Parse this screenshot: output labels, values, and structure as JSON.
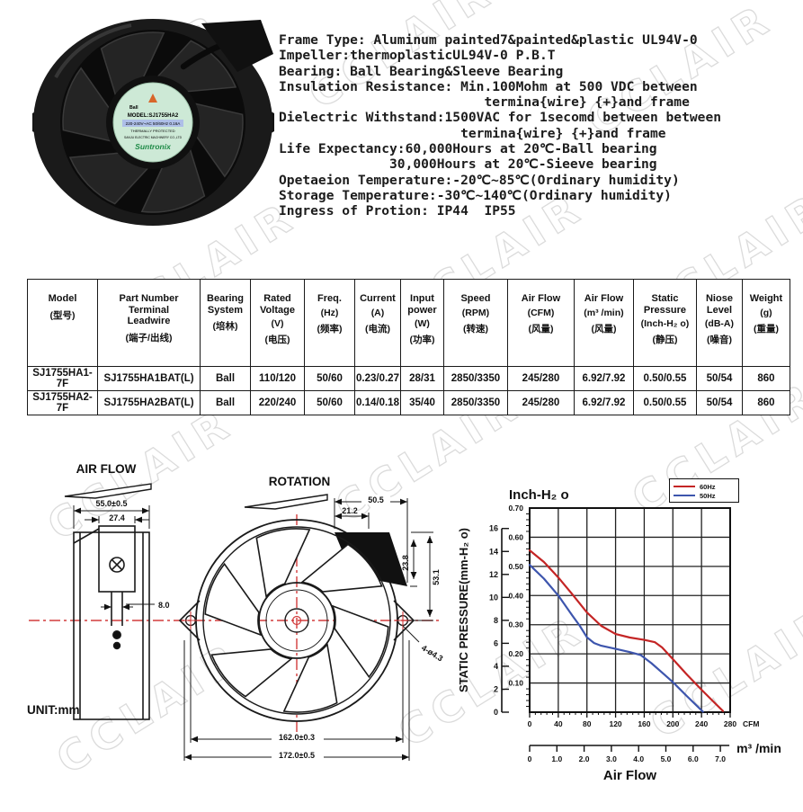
{
  "watermark": "CCLAIR",
  "product_photo": {
    "label": {
      "bearing": "Ball",
      "model": "MODEL:SJ1755HA2",
      "ratings": "220-240V~AC 50/60Hz 0.16A",
      "protected": "THERMALLY PROTECTED",
      "mfr": "SANJU ELECTRIC MACHINERY CO.,LTD",
      "brand": "Suntronix"
    }
  },
  "specs": {
    "lines": [
      "Frame Type: Aluminum painted7&painted&plastic UL94V-0",
      "Impeller:thermoplasticUL94V-0 P.B.T",
      "Bearing: Ball Bearing&Sleeve Bearing",
      "Insulation Resistance: Min.100Mohm at 500 VDC between",
      "                          termina{wire} {+}and frame",
      "Dielectric Withstand:1500VAC for 1secomd between between",
      "                       termina{wire} {+}and frame",
      "Life Expectancy:60,000Hours at 20℃-Ball bearing",
      "              30,000Hours at 20℃-Sieeve bearing",
      "Opetaeion Temperature:-20℃~85℃(Ordinary humidity)",
      "Storage Temperature:-30℃~140℃(Ordinary humidity)",
      "Ingress of Protion: IP44  IP55"
    ]
  },
  "table": {
    "columns": [
      {
        "en": "Model",
        "unit": "",
        "cn": "(型号)"
      },
      {
        "en": "Part Number\nTerminal\nLeadwire",
        "unit": "",
        "cn": "(端子/出线)"
      },
      {
        "en": "Bearing\nSystem",
        "unit": "",
        "cn": "(培林)"
      },
      {
        "en": "Rated\nVoltage",
        "unit": "(V)",
        "cn": "(电压)"
      },
      {
        "en": "Freq.",
        "unit": "(Hz)",
        "cn": "(频率)"
      },
      {
        "en": "Current",
        "unit": "(A)",
        "cn": "(电流)"
      },
      {
        "en": "Input\npower",
        "unit": "(W)",
        "cn": "(功率)"
      },
      {
        "en": "Speed",
        "unit": "(RPM)",
        "cn": "(转速)"
      },
      {
        "en": "Air Flow",
        "unit": "(CFM)",
        "cn": "(风量)"
      },
      {
        "en": "Air Flow",
        "unit": "(m³ /min)",
        "cn": "(风量)"
      },
      {
        "en": "Static\nPressure",
        "unit": "(Inch-H₂ o)",
        "cn": "(静压)"
      },
      {
        "en": "Niose\nLevel",
        "unit": "(dB-A)",
        "cn": "(噪音)"
      },
      {
        "en": "Weight",
        "unit": "(g)",
        "cn": "(重量)"
      }
    ],
    "rows": [
      [
        "SJ1755HA1-7F",
        "SJ1755HA1BAT(L)",
        "Ball",
        "110/120",
        "50/60",
        "0.23/0.27",
        "28/31",
        "2850/3350",
        "245/280",
        "6.92/7.92",
        "0.50/0.55",
        "50/54",
        "860"
      ],
      [
        "SJ1755HA2-7F",
        "SJ1755HA2BAT(L)",
        "Ball",
        "220/240",
        "50/60",
        "0.14/0.18",
        "35/40",
        "2850/3350",
        "245/280",
        "6.92/7.92",
        "0.50/0.55",
        "50/54",
        "860"
      ]
    ]
  },
  "drawings": {
    "unit_label": "UNIT:mm",
    "side_view": {
      "title": "AIR FLOW",
      "dim_width": "55.0±0.5",
      "dim_inner": "27.4",
      "dim_pins": "8.0"
    },
    "front_view": {
      "title": "ROTATION",
      "dim_corner_w": "50.5",
      "dim_corner_inner": "21.2",
      "dim_corner_h": "23.8",
      "dim_corner_h2": "53.1",
      "dim_holes": "4-ø4.3",
      "dim_bolt_circle": "162.0±0.3",
      "dim_overall": "172.0±0.5"
    }
  },
  "chart_data": {
    "type": "line",
    "title": "Inch-H₂ o",
    "x_axis": {
      "label": "Air Flow",
      "cfm_ticks": [
        0,
        40,
        80,
        120,
        160,
        200,
        240,
        280
      ],
      "cfm_unit": "CFM",
      "max_cfm": 280,
      "m3_ticks": [
        "0",
        "1.0",
        "2.0",
        "3.0",
        "4.0",
        "5.0",
        "6.0",
        "7.0"
      ],
      "m3_unit": "m³ /min"
    },
    "y_axis": {
      "label": "STATIC PRESSURE(mm-H₂ o)",
      "inch_ticks": [
        "0.10",
        "0.20",
        "0.30",
        "0.40",
        "0.50",
        "0.60",
        "0.70"
      ],
      "max_inch": 0.7,
      "mm_ticks": [
        0,
        2,
        4,
        6,
        8,
        10,
        12,
        14,
        16
      ],
      "mm_per_inch": 25.4
    },
    "legend": [
      {
        "name": "60Hz",
        "color": "#c42525"
      },
      {
        "name": "50Hz",
        "color": "#3d55ad"
      }
    ],
    "grid": true,
    "series": [
      {
        "name": "60Hz",
        "color": "#c42525",
        "points": [
          [
            0,
            0.555
          ],
          [
            20,
            0.515
          ],
          [
            40,
            0.462
          ],
          [
            60,
            0.403
          ],
          [
            80,
            0.342
          ],
          [
            100,
            0.296
          ],
          [
            120,
            0.268
          ],
          [
            140,
            0.256
          ],
          [
            160,
            0.248
          ],
          [
            175,
            0.24
          ],
          [
            185,
            0.222
          ],
          [
            200,
            0.182
          ],
          [
            220,
            0.128
          ],
          [
            240,
            0.077
          ],
          [
            255,
            0.04
          ],
          [
            270,
            0.004
          ]
        ]
      },
      {
        "name": "50Hz",
        "color": "#3d55ad",
        "points": [
          [
            0,
            0.505
          ],
          [
            20,
            0.458
          ],
          [
            40,
            0.4
          ],
          [
            60,
            0.33
          ],
          [
            70,
            0.296
          ],
          [
            80,
            0.257
          ],
          [
            90,
            0.237
          ],
          [
            100,
            0.228
          ],
          [
            120,
            0.217
          ],
          [
            140,
            0.206
          ],
          [
            155,
            0.196
          ],
          [
            170,
            0.168
          ],
          [
            185,
            0.136
          ],
          [
            200,
            0.103
          ],
          [
            220,
            0.054
          ],
          [
            242,
            0.002
          ]
        ]
      }
    ]
  }
}
